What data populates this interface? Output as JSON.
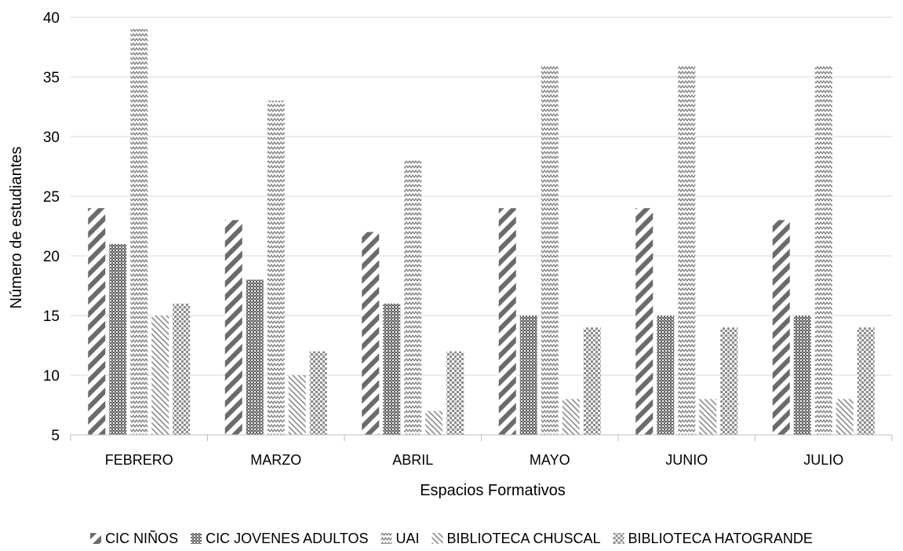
{
  "chart_data": {
    "type": "bar",
    "title": "",
    "xlabel": "Espacios Formativos",
    "ylabel": "Número de estudiantes",
    "ylim": [
      5,
      40
    ],
    "yticks": [
      5,
      10,
      15,
      20,
      25,
      30,
      35,
      40
    ],
    "grid": true,
    "legend_position": "bottom",
    "categories": [
      "FEBRERO",
      "MARZO",
      "ABRIL",
      "MAYO",
      "JUNIO",
      "JULIO"
    ],
    "series": [
      {
        "name": "CIC NIÑOS",
        "values": [
          24,
          23,
          22,
          24,
          24,
          23
        ],
        "pattern": "diag-thick"
      },
      {
        "name": "CIC JOVENES ADULTOS",
        "values": [
          21,
          18,
          16,
          15,
          15,
          15
        ],
        "pattern": "dots"
      },
      {
        "name": "UAI",
        "values": [
          39,
          33,
          28,
          36,
          36,
          36
        ],
        "pattern": "zigzag"
      },
      {
        "name": "BIBLIOTECA CHUSCAL",
        "values": [
          15,
          10,
          7,
          8,
          8,
          8
        ],
        "pattern": "diag-thin"
      },
      {
        "name": "BIBLIOTECA HATOGRANDE",
        "values": [
          16,
          12,
          12,
          14,
          14,
          14
        ],
        "pattern": "checker"
      }
    ]
  }
}
